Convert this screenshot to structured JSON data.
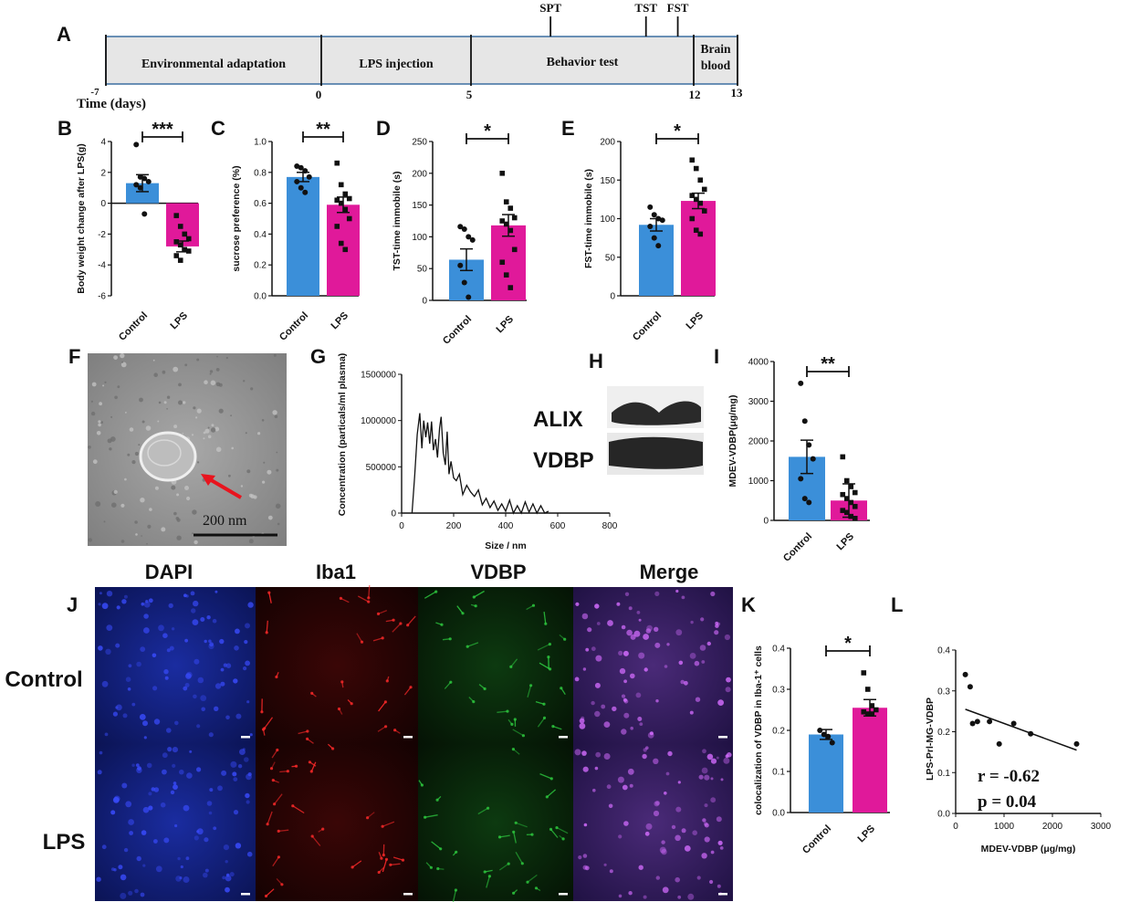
{
  "panel_letters": {
    "A": "A",
    "B": "B",
    "C": "C",
    "D": "D",
    "E": "E",
    "F": "F",
    "G": "G",
    "H": "H",
    "I": "I",
    "J": "J",
    "K": "K",
    "L": "L"
  },
  "timeline": {
    "segments": [
      {
        "label": "Environmental adaptation",
        "start": -7,
        "end": 0
      },
      {
        "label": "LPS injection",
        "start": 0,
        "end": 5
      },
      {
        "label": "Behavior test",
        "start": 5,
        "end": 12
      },
      {
        "label_lines": [
          "Brain",
          "blood"
        ],
        "start": 12,
        "end": 13
      }
    ],
    "ticks": [
      "-7",
      "0",
      "5",
      "12",
      "13"
    ],
    "axis_label": "Time (days)",
    "events": [
      {
        "label": "SPT",
        "day": 7.5
      },
      {
        "label": "TST",
        "day": 10.5
      },
      {
        "label": "FST",
        "day": 11.5
      }
    ],
    "bar_color": "#e6e6e6",
    "border_color": "#3b6ea0"
  },
  "colors": {
    "control": "#3b8fd9",
    "lps": "#e0199a"
  },
  "categories": [
    "Control",
    "LPS"
  ],
  "chart_data": [
    {
      "panel": "B",
      "type": "bar",
      "ylabel": "Body weight change after LPS(g)",
      "ylim": [
        -6,
        4
      ],
      "yticks": [
        -6,
        -4,
        -2,
        0,
        2,
        4
      ],
      "categories": [
        "Control",
        "LPS"
      ],
      "values": [
        1.3,
        -2.8
      ],
      "errors": [
        0.55,
        0.35
      ],
      "points": [
        [
          3.8,
          1.7,
          1.6,
          1.4,
          1.2,
          1.0,
          -0.7
        ],
        [
          -0.8,
          -1.5,
          -2.0,
          -2.3,
          -2.5,
          -2.7,
          -3.0,
          -3.1,
          -3.4,
          -3.7
        ]
      ],
      "significance": "***"
    },
    {
      "panel": "C",
      "type": "bar",
      "ylabel": "sucrose preference (%)",
      "ylim": [
        0,
        1
      ],
      "yticks": [
        0.0,
        0.2,
        0.4,
        0.6,
        0.8,
        1.0
      ],
      "categories": [
        "Control",
        "LPS"
      ],
      "values": [
        0.77,
        0.59
      ],
      "errors": [
        0.03,
        0.05
      ],
      "points": [
        [
          0.84,
          0.83,
          0.81,
          0.77,
          0.74,
          0.7,
          0.67
        ],
        [
          0.86,
          0.72,
          0.66,
          0.63,
          0.62,
          0.6,
          0.56,
          0.5,
          0.45,
          0.34,
          0.3
        ]
      ],
      "significance": "**"
    },
    {
      "panel": "D",
      "type": "bar",
      "ylabel": "TST-time immobile (s)",
      "ylim": [
        0,
        250
      ],
      "yticks": [
        0,
        50,
        100,
        150,
        200,
        250
      ],
      "categories": [
        "Control",
        "LPS"
      ],
      "values": [
        64,
        118
      ],
      "errors": [
        17,
        17
      ],
      "points": [
        [
          116,
          112,
          100,
          95,
          55,
          28,
          5
        ],
        [
          200,
          155,
          145,
          130,
          125,
          120,
          110,
          80,
          60,
          40,
          20
        ]
      ],
      "significance": "*"
    },
    {
      "panel": "E",
      "type": "bar",
      "ylabel": "FST-time immobile (s)",
      "ylim": [
        0,
        200
      ],
      "yticks": [
        0,
        50,
        100,
        150,
        200
      ],
      "categories": [
        "Control",
        "LPS"
      ],
      "values": [
        92,
        123
      ],
      "errors": [
        8,
        10
      ],
      "points": [
        [
          115,
          105,
          100,
          98,
          90,
          75,
          65
        ],
        [
          176,
          165,
          150,
          138,
          130,
          125,
          120,
          110,
          100,
          85,
          80
        ]
      ],
      "significance": "*"
    },
    {
      "panel": "G",
      "type": "line",
      "xlabel": "Size / nm",
      "ylabel": "Concentration (particals/ml plasma)",
      "xlim": [
        0,
        800
      ],
      "ylim": [
        0,
        1500000
      ],
      "xticks": [
        0,
        200,
        400,
        600,
        800
      ],
      "yticks": [
        0,
        500000,
        1000000,
        1500000
      ],
      "x": [
        40,
        50,
        60,
        70,
        78,
        85,
        93,
        100,
        108,
        115,
        122,
        130,
        138,
        146,
        152,
        160,
        168,
        175,
        182,
        190,
        200,
        210,
        222,
        235,
        250,
        265,
        280,
        295,
        310,
        325,
        340,
        355,
        370,
        385,
        400,
        415,
        430,
        445,
        460,
        475,
        490,
        505,
        520,
        535,
        550,
        565
      ],
      "y": [
        0,
        400000,
        850000,
        1080000,
        700000,
        1000000,
        820000,
        980000,
        750000,
        990000,
        680000,
        800000,
        600000,
        920000,
        1040000,
        650000,
        520000,
        880000,
        420000,
        560000,
        380000,
        350000,
        420000,
        200000,
        300000,
        230000,
        180000,
        250000,
        90000,
        160000,
        60000,
        130000,
        30000,
        100000,
        20000,
        140000,
        0,
        80000,
        0,
        120000,
        10000,
        100000,
        0,
        80000,
        0,
        20000
      ]
    },
    {
      "panel": "I",
      "type": "bar",
      "ylabel": "MDEV-VDBP(μg/mg)",
      "ylim": [
        0,
        4000
      ],
      "yticks": [
        0,
        1000,
        2000,
        3000,
        4000
      ],
      "categories": [
        "Control",
        "LPS"
      ],
      "values": [
        1600,
        500
      ],
      "errors": [
        420,
        420
      ],
      "points": [
        [
          3450,
          2500,
          1900,
          1550,
          1050,
          550,
          450
        ],
        [
          1600,
          1000,
          850,
          700,
          650,
          550,
          450,
          350,
          250,
          200,
          100,
          50
        ]
      ],
      "significance": "**"
    },
    {
      "panel": "K",
      "type": "bar",
      "ylabel": "colocalization of VDBP in Iba-1⁺ cells",
      "ylim": [
        0,
        0.4
      ],
      "yticks": [
        0.0,
        0.1,
        0.2,
        0.3,
        0.4
      ],
      "categories": [
        "Control",
        "LPS"
      ],
      "values": [
        0.19,
        0.255
      ],
      "errors": [
        0.012,
        0.02
      ],
      "points": [
        [
          0.2,
          0.19,
          0.185,
          0.17
        ],
        [
          0.34,
          0.3,
          0.26,
          0.25,
          0.245,
          0.24,
          0.24
        ]
      ],
      "significance": "*"
    },
    {
      "panel": "L",
      "type": "scatter",
      "xlabel": "MDEV-VDBP (μg/mg)",
      "ylabel": "LPS-Prl-MG-VDBP",
      "xlim": [
        0,
        3000
      ],
      "ylim": [
        0,
        0.4
      ],
      "xticks": [
        0,
        1000,
        2000,
        3000
      ],
      "yticks": [
        0.0,
        0.1,
        0.2,
        0.3,
        0.4
      ],
      "x": [
        200,
        300,
        350,
        450,
        700,
        900,
        1200,
        1550,
        2500
      ],
      "y": [
        0.34,
        0.31,
        0.22,
        0.225,
        0.225,
        0.17,
        0.22,
        0.195,
        0.17
      ],
      "fit": {
        "x": [
          200,
          2500
        ],
        "y": [
          0.255,
          0.155
        ]
      },
      "annotations": [
        "r = -0.62",
        "p = 0.04"
      ]
    }
  ],
  "tem": {
    "scale_label": "200 nm"
  },
  "western": {
    "bands": [
      "ALIX",
      "VDBP"
    ]
  },
  "micro": {
    "channels": [
      "DAPI",
      "Iba1",
      "VDBP",
      "Merge"
    ],
    "rows": [
      "Control",
      "LPS"
    ]
  }
}
